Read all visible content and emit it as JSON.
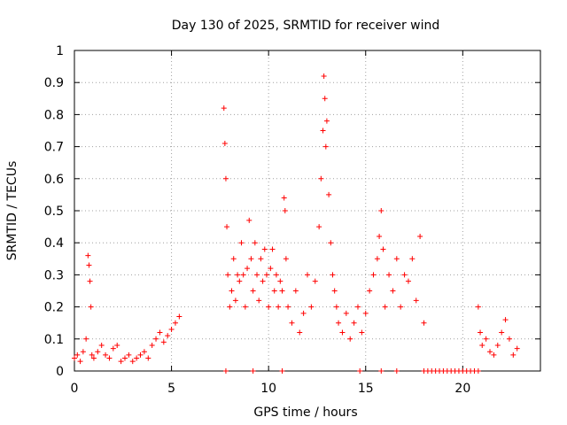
{
  "chart_data": {
    "type": "scatter",
    "title": "Day 130 of 2025, SRMTID for receiver wind",
    "xlabel": "GPS time / hours",
    "ylabel": "SRMTID / TECUs",
    "xlim": [
      0,
      24
    ],
    "ylim": [
      0,
      1
    ],
    "xticks": [
      0,
      5,
      10,
      15,
      20
    ],
    "xtick_labels": [
      "0",
      "5",
      "10",
      "15",
      "20"
    ],
    "yticks": [
      0,
      0.1,
      0.2,
      0.3,
      0.4,
      0.5,
      0.6,
      0.7,
      0.8,
      0.9,
      1
    ],
    "ytick_labels": [
      "0",
      "0.1",
      "0.2",
      "0.3",
      "0.4",
      "0.5",
      "0.6",
      "0.7",
      "0.8",
      "0.9",
      "1"
    ],
    "grid": true,
    "marker": "+",
    "color": "#ff0000",
    "series": [
      {
        "name": "SRMTID",
        "x": [
          0.0,
          0.15,
          0.3,
          0.45,
          0.6,
          0.7,
          0.75,
          0.8,
          0.85,
          0.9,
          1.0,
          1.2,
          1.4,
          1.6,
          1.8,
          2.0,
          2.2,
          2.4,
          2.6,
          2.8,
          3.0,
          3.2,
          3.4,
          3.6,
          3.8,
          4.0,
          4.2,
          4.4,
          4.6,
          4.8,
          5.0,
          5.2,
          5.4,
          7.7,
          7.75,
          7.8,
          7.85,
          7.9,
          8.0,
          8.1,
          8.2,
          8.3,
          8.4,
          8.5,
          8.6,
          8.7,
          8.8,
          8.9,
          9.0,
          9.1,
          9.2,
          9.3,
          9.4,
          9.5,
          9.6,
          9.7,
          9.8,
          9.9,
          10.0,
          10.1,
          10.2,
          10.3,
          10.4,
          10.5,
          10.6,
          10.7,
          10.8,
          10.85,
          10.9,
          11.0,
          11.2,
          11.4,
          11.6,
          11.8,
          12.0,
          12.2,
          12.4,
          12.6,
          12.7,
          12.8,
          12.85,
          12.9,
          12.95,
          13.0,
          13.1,
          13.2,
          13.3,
          13.4,
          13.5,
          13.6,
          13.8,
          14.0,
          14.2,
          14.4,
          14.6,
          14.8,
          15.0,
          15.2,
          15.4,
          15.6,
          15.7,
          15.8,
          15.9,
          16.0,
          16.2,
          16.4,
          16.6,
          16.8,
          17.0,
          17.2,
          17.4,
          17.6,
          17.8,
          18.0,
          20.8,
          20.9,
          21.0,
          21.2,
          21.4,
          21.6,
          21.8,
          22.0,
          22.2,
          22.4,
          22.6,
          22.8
        ],
        "y": [
          0.04,
          0.05,
          0.03,
          0.06,
          0.1,
          0.36,
          0.33,
          0.28,
          0.2,
          0.05,
          0.04,
          0.06,
          0.08,
          0.05,
          0.04,
          0.07,
          0.08,
          0.03,
          0.04,
          0.05,
          0.03,
          0.04,
          0.05,
          0.06,
          0.04,
          0.08,
          0.1,
          0.12,
          0.09,
          0.11,
          0.13,
          0.15,
          0.17,
          0.82,
          0.71,
          0.6,
          0.45,
          0.3,
          0.2,
          0.25,
          0.35,
          0.22,
          0.3,
          0.28,
          0.4,
          0.3,
          0.2,
          0.32,
          0.47,
          0.35,
          0.25,
          0.4,
          0.3,
          0.22,
          0.35,
          0.28,
          0.38,
          0.3,
          0.2,
          0.32,
          0.38,
          0.25,
          0.3,
          0.2,
          0.28,
          0.25,
          0.54,
          0.5,
          0.35,
          0.2,
          0.15,
          0.25,
          0.12,
          0.18,
          0.3,
          0.2,
          0.28,
          0.45,
          0.6,
          0.75,
          0.92,
          0.85,
          0.7,
          0.78,
          0.55,
          0.4,
          0.3,
          0.25,
          0.2,
          0.15,
          0.12,
          0.18,
          0.1,
          0.15,
          0.2,
          0.12,
          0.18,
          0.25,
          0.3,
          0.35,
          0.42,
          0.5,
          0.38,
          0.2,
          0.3,
          0.25,
          0.35,
          0.2,
          0.3,
          0.28,
          0.35,
          0.22,
          0.42,
          0.15,
          0.2,
          0.12,
          0.08,
          0.1,
          0.06,
          0.05,
          0.08,
          0.12,
          0.16,
          0.1,
          0.05,
          0.07
        ],
        "baseline_markers_x": [
          7.8,
          9.2,
          10.7,
          14.7,
          15.8,
          16.6,
          18.0,
          18.2,
          18.4,
          18.6,
          18.8,
          19.0,
          19.2,
          19.4,
          19.6,
          19.8,
          20.0,
          20.2,
          20.4,
          20.6,
          20.8
        ]
      }
    ]
  }
}
